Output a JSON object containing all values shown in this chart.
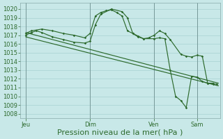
{
  "bg_color": "#c8e8e8",
  "grid_color": "#a0cccc",
  "line_color": "#2d6a2d",
  "ylim_min": 1007.5,
  "ylim_max": 1020.7,
  "yticks": [
    1008,
    1009,
    1010,
    1011,
    1012,
    1013,
    1014,
    1015,
    1016,
    1017,
    1018,
    1019,
    1020
  ],
  "xlabel": "Pression niveau de la mer( hPa )",
  "xtick_labels": [
    "Jeu",
    "Dim",
    "Ven",
    "Sam"
  ],
  "xtick_pos": [
    0,
    36,
    72,
    96
  ],
  "xlim_min": -3,
  "xlim_max": 109,
  "tick_fontsize": 6,
  "xlabel_fontsize": 8,
  "trend1_x": [
    0,
    108
  ],
  "trend1_y": [
    1017.3,
    1011.5
  ],
  "trend2_x": [
    0,
    108
  ],
  "trend2_y": [
    1016.8,
    1011.2
  ],
  "wavy1_x": [
    0,
    3,
    9,
    15,
    21,
    27,
    33,
    36,
    39,
    42,
    45,
    48,
    51,
    54,
    57,
    60,
    63,
    66,
    69,
    72,
    75,
    78,
    81,
    87,
    90,
    93,
    96,
    99,
    102,
    105,
    107
  ],
  "wavy1_y": [
    1017.2,
    1017.5,
    1017.7,
    1017.5,
    1017.2,
    1017.0,
    1016.7,
    1017.2,
    1019.2,
    1019.6,
    1019.8,
    1019.9,
    1019.6,
    1019.2,
    1017.5,
    1017.2,
    1016.8,
    1016.6,
    1016.7,
    1017.0,
    1017.5,
    1017.2,
    1016.5,
    1014.8,
    1014.6,
    1014.5,
    1014.7,
    1014.6,
    1011.5,
    1011.4,
    1011.4
  ],
  "wavy2_x": [
    0,
    3,
    6,
    9,
    15,
    21,
    27,
    33,
    36,
    39,
    42,
    48,
    54,
    57,
    60,
    63,
    66,
    72,
    75,
    78,
    81,
    84,
    87,
    90,
    93,
    96,
    99,
    102,
    105
  ],
  "wavy2_y": [
    1017.0,
    1017.3,
    1017.5,
    1017.3,
    1016.8,
    1016.5,
    1016.2,
    1016.1,
    1016.3,
    1018.2,
    1019.4,
    1020.0,
    1019.7,
    1019.0,
    1017.2,
    1016.9,
    1016.6,
    1016.6,
    1016.7,
    1016.6,
    1013.0,
    1010.0,
    1009.5,
    1008.7,
    1012.3,
    1012.2,
    1011.7,
    1011.5,
    1011.5
  ]
}
